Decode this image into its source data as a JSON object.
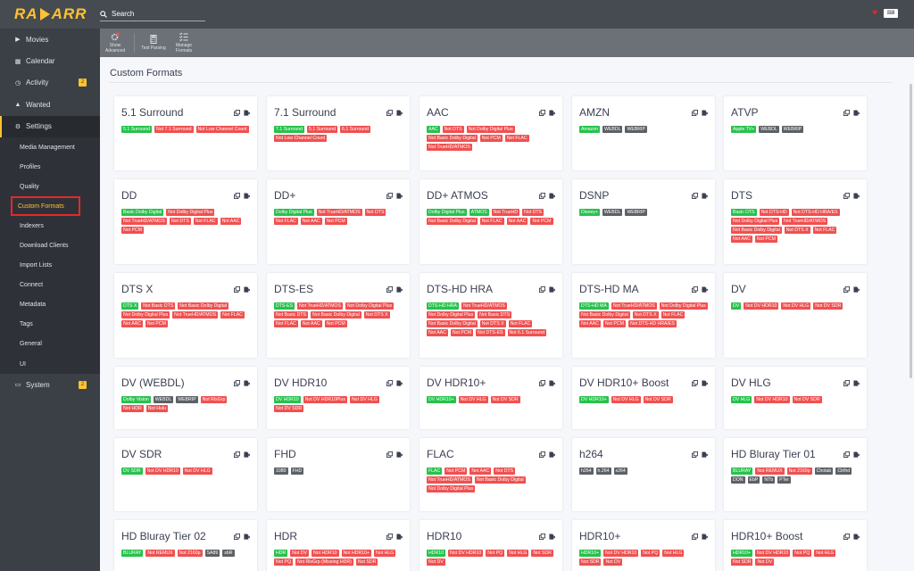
{
  "app": {
    "logo_left": "RA",
    "logo_right": "ARR"
  },
  "search": {
    "placeholder": "Search"
  },
  "sidebar": {
    "items": [
      {
        "label": "Movies",
        "icon": "play-icon"
      },
      {
        "label": "Calendar",
        "icon": "calendar-icon"
      },
      {
        "label": "Activity",
        "icon": "clock-icon",
        "badge": "2"
      },
      {
        "label": "Wanted",
        "icon": "warning-icon"
      },
      {
        "label": "Settings",
        "icon": "gears-icon"
      }
    ],
    "settings_items": [
      "Media Management",
      "Profiles",
      "Quality",
      "Custom Formats",
      "Indexers",
      "Download Clients",
      "Import Lists",
      "Connect",
      "Metadata",
      "Tags",
      "General",
      "UI"
    ],
    "system": {
      "label": "System",
      "icon": "laptop-icon",
      "badge": "2"
    }
  },
  "toolbar": {
    "show_advanced": "Show Advanced",
    "test_parsing": "Test Parsing",
    "manage_formats": "Manage Formats"
  },
  "page_title": "Custom Formats",
  "colors": {
    "accent": "#ffc230",
    "green": "#27c24c",
    "red": "#f05050",
    "gray": "#5d6165"
  },
  "cards": [
    {
      "name": "5.1 Surround",
      "tags": [
        [
          "g",
          "5.1 Surround"
        ],
        [
          "r",
          "Not 7.1 Surround"
        ],
        [
          "r",
          "Not Low Channel Count"
        ]
      ]
    },
    {
      "name": "7.1 Surround",
      "tags": [
        [
          "g",
          "7.1 Surround"
        ],
        [
          "r",
          "5.1 Surround"
        ],
        [
          "r",
          "6.1 Surround"
        ],
        [
          "r",
          "Not Low Channel Count"
        ]
      ]
    },
    {
      "name": "AAC",
      "tags": [
        [
          "g",
          "AAC"
        ],
        [
          "r",
          "Not DTS"
        ],
        [
          "r",
          "Not Dolby Digital Plus"
        ],
        [
          "r",
          "Not Basic Dolby Digital"
        ],
        [
          "r",
          "Not PCM"
        ],
        [
          "r",
          "Not FLAC"
        ],
        [
          "r",
          "Not TrueHD/ATMOS"
        ]
      ]
    },
    {
      "name": "AMZN",
      "tags": [
        [
          "g",
          "Amazon"
        ],
        [
          "k",
          "WEBDL"
        ],
        [
          "k",
          "WEBRIP"
        ]
      ]
    },
    {
      "name": "ATVP",
      "tags": [
        [
          "g",
          "Apple TV+"
        ],
        [
          "k",
          "WEBDL"
        ],
        [
          "k",
          "WEBRIP"
        ]
      ]
    },
    {
      "name": "DD",
      "tags": [
        [
          "g",
          "Basic Dolby Digital"
        ],
        [
          "r",
          "Not Dolby Digital Plus"
        ],
        [
          "r",
          "Not TrueHD/ATMOS"
        ],
        [
          "r",
          "Not DTS"
        ],
        [
          "r",
          "Not FLAC"
        ],
        [
          "r",
          "Not AAC"
        ],
        [
          "r",
          "Not PCM"
        ]
      ]
    },
    {
      "name": "DD+",
      "tags": [
        [
          "g",
          "Dolby Digital Plus"
        ],
        [
          "r",
          "Not TrueHD/ATMOS"
        ],
        [
          "r",
          "Not DTS"
        ],
        [
          "r",
          "Not FLAC"
        ],
        [
          "r",
          "Not AAC"
        ],
        [
          "r",
          "Not PCM"
        ]
      ]
    },
    {
      "name": "DD+ ATMOS",
      "tags": [
        [
          "g",
          "Dolby Digital Plus"
        ],
        [
          "g",
          "ATMOS"
        ],
        [
          "r",
          "Not TrueHD"
        ],
        [
          "r",
          "Not DTS"
        ],
        [
          "r",
          "Not Basic Dolby Digital"
        ],
        [
          "r",
          "Not FLAC"
        ],
        [
          "r",
          "Not AAC"
        ],
        [
          "r",
          "Not PCM"
        ]
      ]
    },
    {
      "name": "DSNP",
      "tags": [
        [
          "g",
          "Disney+"
        ],
        [
          "k",
          "WEBDL"
        ],
        [
          "k",
          "WEBRIP"
        ]
      ]
    },
    {
      "name": "DTS",
      "tags": [
        [
          "g",
          "Basic DTS"
        ],
        [
          "r",
          "Not DTS-HD"
        ],
        [
          "r",
          "Not DTS-HD HRA/ES"
        ],
        [
          "r",
          "Not Dolby Digital Plus"
        ],
        [
          "r",
          "Not TrueHD/ATMOS"
        ],
        [
          "r",
          "Not Basic Dolby Digital"
        ],
        [
          "r",
          "Not DTS X"
        ],
        [
          "r",
          "Not FLAC"
        ],
        [
          "r",
          "Not AAC"
        ],
        [
          "r",
          "Not PCM"
        ]
      ]
    },
    {
      "name": "DTS X",
      "tags": [
        [
          "g",
          "DTS X"
        ],
        [
          "r",
          "Not Basic DTS"
        ],
        [
          "r",
          "Not Basic Dolby Digital"
        ],
        [
          "r",
          "Not Dolby Digital Plus"
        ],
        [
          "r",
          "Not TrueHD/ATMOS"
        ],
        [
          "r",
          "Not FLAC"
        ],
        [
          "r",
          "Not AAC"
        ],
        [
          "r",
          "Not PCM"
        ]
      ]
    },
    {
      "name": "DTS-ES",
      "tags": [
        [
          "g",
          "DTS-ES"
        ],
        [
          "r",
          "Not TrueHD/ATMOS"
        ],
        [
          "r",
          "Not Dolby Digital Plus"
        ],
        [
          "r",
          "Not Basic DTS"
        ],
        [
          "r",
          "Not Basic Dolby Digital"
        ],
        [
          "r",
          "Not DTS X"
        ],
        [
          "r",
          "Not FLAC"
        ],
        [
          "r",
          "Not AAC"
        ],
        [
          "r",
          "Not PCM"
        ]
      ]
    },
    {
      "name": "DTS-HD HRA",
      "tags": [
        [
          "g",
          "DTS-HD HRA"
        ],
        [
          "r",
          "Not TrueHD/ATMOS"
        ],
        [
          "r",
          "Not Dolby Digital Plus"
        ],
        [
          "r",
          "Not Basic DTS"
        ],
        [
          "r",
          "Not Basic Dolby Digital"
        ],
        [
          "r",
          "Not DTS X"
        ],
        [
          "r",
          "Not FLAC"
        ],
        [
          "r",
          "Not AAC"
        ],
        [
          "r",
          "Not PCM"
        ],
        [
          "r",
          "Not DTS-ES"
        ],
        [
          "r",
          "Not 6.1 Surround"
        ]
      ]
    },
    {
      "name": "DTS-HD MA",
      "tags": [
        [
          "g",
          "DTS-HD MA"
        ],
        [
          "r",
          "Not TrueHD/ATMOS"
        ],
        [
          "r",
          "Not Dolby Digital Plus"
        ],
        [
          "r",
          "Not Basic Dolby Digital"
        ],
        [
          "r",
          "Not DTS X"
        ],
        [
          "r",
          "Not FLAC"
        ],
        [
          "r",
          "Not AAC"
        ],
        [
          "r",
          "Not PCM"
        ],
        [
          "r",
          "Not DTS-HD HRA/ES"
        ]
      ]
    },
    {
      "name": "DV",
      "tags": [
        [
          "g",
          "DV"
        ],
        [
          "r",
          "Not DV HDR10"
        ],
        [
          "r",
          "Not DV HLG"
        ],
        [
          "r",
          "Not DV SDR"
        ]
      ]
    },
    {
      "name": "DV (WEBDL)",
      "tags": [
        [
          "g",
          "Dolby Vision"
        ],
        [
          "k",
          "WEBDL"
        ],
        [
          "k",
          "WEBRIP"
        ],
        [
          "r",
          "Not RlsGrp"
        ],
        [
          "r",
          "Not HDR"
        ],
        [
          "r",
          "Not Hulu"
        ]
      ]
    },
    {
      "name": "DV HDR10",
      "tags": [
        [
          "g",
          "DV HDR10"
        ],
        [
          "r",
          "Not DV HDR10Plus"
        ],
        [
          "r",
          "Not DV HLG"
        ],
        [
          "r",
          "Not DV SDR"
        ]
      ]
    },
    {
      "name": "DV HDR10+",
      "tags": [
        [
          "g",
          "DV HDR10+"
        ],
        [
          "r",
          "Not DV HLG"
        ],
        [
          "r",
          "Not DV SDR"
        ]
      ]
    },
    {
      "name": "DV HDR10+ Boost",
      "tags": [
        [
          "g",
          "DV HDR10+"
        ],
        [
          "r",
          "Not DV HLG"
        ],
        [
          "r",
          "Not DV SDR"
        ]
      ]
    },
    {
      "name": "DV HLG",
      "tags": [
        [
          "g",
          "DV HLG"
        ],
        [
          "r",
          "Not DV HDR10"
        ],
        [
          "r",
          "Not DV SDR"
        ]
      ]
    },
    {
      "name": "DV SDR",
      "tags": [
        [
          "g",
          "DV SDR"
        ],
        [
          "r",
          "Not DV HDR10"
        ],
        [
          "r",
          "Not DV HLG"
        ]
      ]
    },
    {
      "name": "FHD",
      "tags": [
        [
          "k",
          "1080"
        ],
        [
          "k",
          "FHD"
        ]
      ]
    },
    {
      "name": "FLAC",
      "tags": [
        [
          "g",
          "FLAC"
        ],
        [
          "r",
          "Not PCM"
        ],
        [
          "r",
          "Not AAC"
        ],
        [
          "r",
          "Not DTS"
        ],
        [
          "r",
          "Not TrueHD/ATMOS"
        ],
        [
          "r",
          "Not Basic Dolby Digital"
        ],
        [
          "r",
          "Not Dolby Digital Plus"
        ]
      ]
    },
    {
      "name": "h264",
      "tags": [
        [
          "k",
          "h264"
        ],
        [
          "k",
          "h.264"
        ],
        [
          "k",
          "x264"
        ]
      ]
    },
    {
      "name": "HD Bluray Tier 01",
      "tags": [
        [
          "g",
          "BLURAY"
        ],
        [
          "r",
          "Not REMUX"
        ],
        [
          "r",
          "Not 2160p"
        ],
        [
          "k",
          "Chotab"
        ],
        [
          "k",
          "Ctrlhd"
        ],
        [
          "k",
          "DON"
        ],
        [
          "k",
          "EbP"
        ],
        [
          "k",
          "NTb"
        ],
        [
          "k",
          "PTer"
        ]
      ]
    },
    {
      "name": "HD Bluray Tier 02",
      "tags": [
        [
          "g",
          "BLURAY"
        ],
        [
          "r",
          "Not REMUX"
        ],
        [
          "r",
          "Not 2160p"
        ],
        [
          "k",
          "SA89"
        ],
        [
          "k",
          "sbR"
        ]
      ]
    },
    {
      "name": "HDR",
      "tags": [
        [
          "g",
          "HDR"
        ],
        [
          "r",
          "Not DV"
        ],
        [
          "r",
          "Not HDR10"
        ],
        [
          "r",
          "Not HDR10+"
        ],
        [
          "r",
          "Not HLG"
        ],
        [
          "r",
          "Not PQ"
        ],
        [
          "r",
          "Not RlsGrp (Missing HDR)"
        ],
        [
          "r",
          "Not SDR"
        ]
      ]
    },
    {
      "name": "HDR10",
      "tags": [
        [
          "g",
          "HDR10"
        ],
        [
          "r",
          "Not DV HDR10"
        ],
        [
          "r",
          "Not PQ"
        ],
        [
          "r",
          "Not HLG"
        ],
        [
          "r",
          "Not SDR"
        ],
        [
          "r",
          "Not DV"
        ]
      ]
    },
    {
      "name": "HDR10+",
      "tags": [
        [
          "g",
          "HDR10+"
        ],
        [
          "r",
          "Not DV HDR10"
        ],
        [
          "r",
          "Not PQ"
        ],
        [
          "r",
          "Not HLG"
        ],
        [
          "r",
          "Not SDR"
        ],
        [
          "r",
          "Not DV"
        ]
      ]
    },
    {
      "name": "HDR10+ Boost",
      "tags": [
        [
          "g",
          "HDR10+"
        ],
        [
          "r",
          "Not DV HDR10"
        ],
        [
          "r",
          "Not PQ"
        ],
        [
          "r",
          "Not HLG"
        ],
        [
          "r",
          "Not SDR"
        ],
        [
          "r",
          "Not DV"
        ]
      ]
    }
  ]
}
